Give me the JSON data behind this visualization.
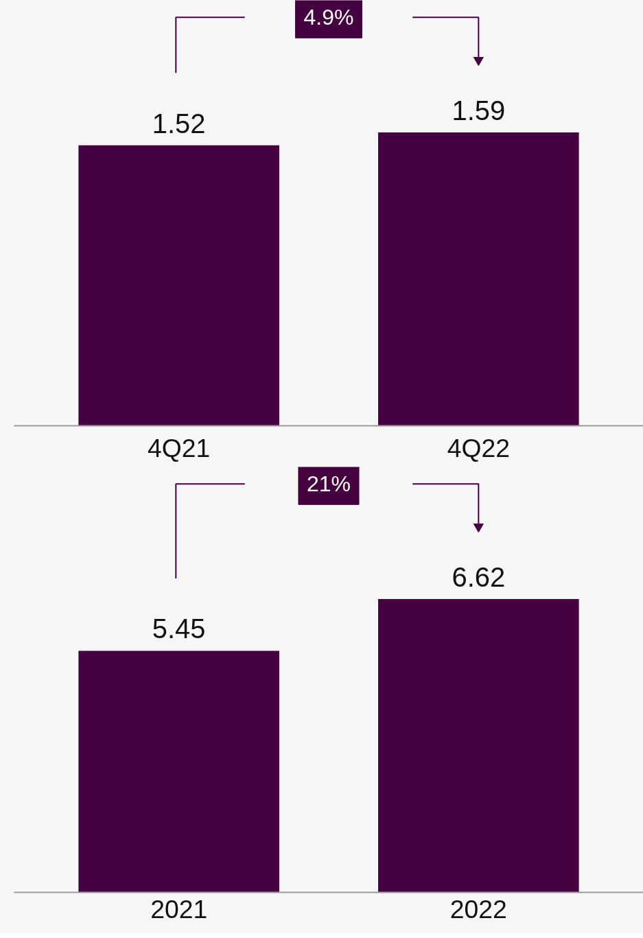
{
  "chart_data": [
    {
      "type": "bar",
      "categories": [
        "4Q21",
        "4Q22"
      ],
      "values": [
        1.52,
        1.59
      ],
      "color": "#45003f",
      "data_labels": true,
      "annotations": [
        "4.9%"
      ],
      "tick_labels": "x"
    },
    {
      "type": "bar",
      "categories": [
        "2021",
        "2022"
      ],
      "values": [
        5.45,
        6.62
      ],
      "color": "#45003f",
      "data_labels": true,
      "annotations": [
        "21%"
      ],
      "tick_labels": "x"
    }
  ]
}
